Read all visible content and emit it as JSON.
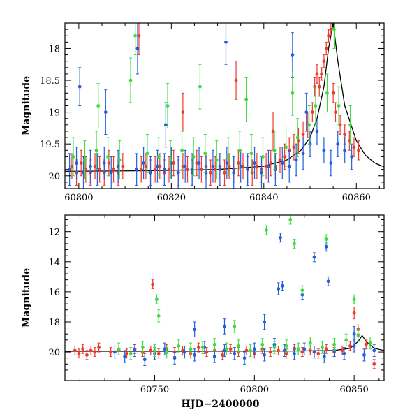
{
  "colors": {
    "green": "#3ddc3d",
    "blue": "#1f5fe0",
    "red": "#ee3b2b",
    "model": "#000000"
  },
  "chart_data": [
    {
      "type": "scatter",
      "panel": "top",
      "title": "",
      "xlabel": "",
      "ylabel": "Magnitude",
      "xlim": [
        60797,
        60866
      ],
      "ylim": [
        20.2,
        17.6
      ],
      "y_inverted": true,
      "xticks": [
        "60800",
        "60820",
        "60840",
        "60860"
      ],
      "yticks": [
        "18",
        "18.5",
        "19",
        "19.5",
        "20"
      ],
      "grid": false,
      "legend": "none",
      "series": [
        {
          "color": "red",
          "x": [
            60798.5,
            60799.5,
            60800.5,
            60801.5,
            60802.5,
            60803.5,
            60804.5,
            60805.5,
            60806.5,
            60807.5,
            60808.5,
            60809.5,
            60813.5,
            60814.5,
            60815.5,
            60816.5,
            60817.5,
            60818.5,
            60819.5,
            60820.5,
            60821.5,
            60822.5,
            60823.5,
            60824.5,
            60825.5,
            60826.5,
            60827.5,
            60828.5,
            60829.5,
            60830.5,
            60831.5,
            60832.5,
            60833.5,
            60834.5,
            60835.5,
            60836.5,
            60837.5,
            60838.5,
            60839.5,
            60840.5,
            60841.5,
            60842.5,
            60843.5,
            60844.5,
            60845.5,
            60846.5,
            60847.5,
            60848.5,
            60849.5,
            60850.5,
            60851.0,
            60851.5,
            60852.0,
            60852.5,
            60853.0,
            60853.5,
            60854.0,
            60854.5,
            60855.0,
            60855.5,
            60856.5,
            60857.5,
            60858.5,
            60859.5,
            60860.5,
            60813.0,
            60822.5,
            60834.0,
            60842.0
          ],
          "y": [
            19.85,
            19.95,
            19.8,
            19.9,
            19.95,
            19.85,
            19.9,
            19.95,
            19.8,
            19.9,
            19.95,
            19.85,
            19.9,
            19.85,
            19.95,
            19.9,
            19.85,
            19.95,
            19.9,
            19.8,
            19.95,
            19.85,
            19.9,
            19.95,
            19.8,
            19.9,
            19.85,
            19.95,
            19.9,
            19.85,
            19.95,
            19.85,
            19.9,
            19.8,
            19.85,
            19.9,
            19.95,
            19.85,
            19.9,
            19.85,
            19.8,
            19.85,
            19.75,
            19.7,
            19.6,
            19.55,
            19.45,
            19.35,
            19.2,
            19.0,
            18.6,
            18.4,
            18.6,
            18.4,
            18.2,
            18.0,
            17.8,
            17.7,
            18.7,
            19.0,
            19.2,
            19.35,
            19.45,
            19.55,
            19.6,
            17.8,
            19.0,
            18.5,
            19.3
          ],
          "err": [
            0.2,
            0.2,
            0.2,
            0.2,
            0.2,
            0.2,
            0.2,
            0.2,
            0.2,
            0.2,
            0.2,
            0.2,
            0.2,
            0.2,
            0.2,
            0.2,
            0.2,
            0.2,
            0.2,
            0.2,
            0.2,
            0.2,
            0.2,
            0.2,
            0.2,
            0.2,
            0.2,
            0.2,
            0.2,
            0.2,
            0.2,
            0.2,
            0.2,
            0.2,
            0.2,
            0.2,
            0.2,
            0.2,
            0.2,
            0.2,
            0.2,
            0.2,
            0.2,
            0.2,
            0.2,
            0.2,
            0.2,
            0.2,
            0.2,
            0.15,
            0.15,
            0.15,
            0.15,
            0.1,
            0.1,
            0.1,
            0.1,
            0.1,
            0.15,
            0.15,
            0.15,
            0.15,
            0.15,
            0.15,
            0.15,
            0.3,
            0.3,
            0.3,
            0.3
          ]
        },
        {
          "color": "blue",
          "x": [
            60798,
            60799.5,
            60801,
            60802.5,
            60804,
            60805.5,
            60807,
            60808.5,
            60812.5,
            60814,
            60815.5,
            60817,
            60818.5,
            60820,
            60821.5,
            60823,
            60824.5,
            60826,
            60827.5,
            60829,
            60830.5,
            60832,
            60833.5,
            60835,
            60836.5,
            60838,
            60839.5,
            60841,
            60842.5,
            60844,
            60845.5,
            60847,
            60848.5,
            60850,
            60851.5,
            60853,
            60854.5,
            60856,
            60857.5,
            60859,
            60800.2,
            60805.8,
            60812.7,
            60818.8,
            60831.8,
            60846.2,
            60849.2
          ],
          "y": [
            19.9,
            19.8,
            19.95,
            19.85,
            19.9,
            19.8,
            19.95,
            19.85,
            19.9,
            19.8,
            19.95,
            19.85,
            19.9,
            19.8,
            19.95,
            19.85,
            19.9,
            19.8,
            19.95,
            19.85,
            19.9,
            19.8,
            19.95,
            19.85,
            19.9,
            19.8,
            19.95,
            19.85,
            19.9,
            19.8,
            19.85,
            19.75,
            19.65,
            19.5,
            19.3,
            19.6,
            19.8,
            19.5,
            19.6,
            19.7,
            18.6,
            19.0,
            18.0,
            19.2,
            17.9,
            18.1,
            19.0
          ],
          "err": [
            0.25,
            0.25,
            0.25,
            0.25,
            0.25,
            0.25,
            0.25,
            0.25,
            0.25,
            0.25,
            0.25,
            0.25,
            0.25,
            0.25,
            0.25,
            0.25,
            0.25,
            0.25,
            0.25,
            0.25,
            0.25,
            0.25,
            0.25,
            0.25,
            0.25,
            0.25,
            0.25,
            0.25,
            0.25,
            0.25,
            0.25,
            0.25,
            0.25,
            0.2,
            0.2,
            0.2,
            0.2,
            0.2,
            0.2,
            0.2,
            0.3,
            0.35,
            0.4,
            0.35,
            0.35,
            0.35,
            0.3
          ]
        },
        {
          "color": "green",
          "x": [
            60798.8,
            60801.3,
            60803.8,
            60806.3,
            60808.8,
            60814.8,
            60817.3,
            60819.8,
            60822.3,
            60824.8,
            60827.3,
            60829.8,
            60832.3,
            60834.8,
            60837.3,
            60839.8,
            60842.3,
            60844.8,
            60847.3,
            60849.8,
            60851.2,
            60853.7,
            60856.2,
            60858.7,
            60804.2,
            60811.2,
            60819.2,
            60826.2,
            60836.2,
            60846.2,
            60855.2,
            60812.2
          ],
          "y": [
            19.7,
            19.75,
            19.6,
            19.7,
            19.75,
            19.65,
            19.7,
            19.75,
            19.6,
            19.7,
            19.65,
            19.75,
            19.7,
            19.6,
            19.65,
            19.7,
            19.6,
            19.55,
            19.4,
            19.2,
            18.9,
            18.7,
            18.9,
            19.2,
            18.9,
            18.5,
            18.9,
            18.6,
            18.8,
            18.7,
            17.7,
            17.8
          ],
          "err": [
            0.3,
            0.3,
            0.3,
            0.3,
            0.3,
            0.3,
            0.3,
            0.3,
            0.3,
            0.3,
            0.3,
            0.3,
            0.3,
            0.3,
            0.3,
            0.3,
            0.3,
            0.3,
            0.3,
            0.3,
            0.3,
            0.3,
            0.3,
            0.3,
            0.35,
            0.35,
            0.35,
            0.35,
            0.35,
            0.35,
            0.3,
            0.3
          ]
        }
      ],
      "model": {
        "x": [
          60797,
          60815,
          60830,
          60840,
          60845,
          60848,
          60850,
          60851.5,
          60853,
          60854,
          60855,
          60856,
          60857.5,
          60860,
          60862,
          60864,
          60866
        ],
        "y": [
          19.93,
          19.92,
          19.9,
          19.85,
          19.75,
          19.6,
          19.4,
          19.1,
          18.6,
          18.0,
          17.6,
          18.2,
          18.9,
          19.45,
          19.68,
          19.8,
          19.86
        ]
      }
    },
    {
      "type": "scatter",
      "panel": "bottom",
      "title": "",
      "xlabel": "HJD−2400000",
      "ylabel": "Magnitude",
      "xlim": [
        60705,
        60865
      ],
      "ylim": [
        21.9,
        10.9
      ],
      "y_inverted": true,
      "xticks": [
        "60750",
        "60800",
        "60850"
      ],
      "yticks": [
        "12",
        "14",
        "16",
        "18",
        "20"
      ],
      "grid": false,
      "legend": "none",
      "series": [
        {
          "color": "red",
          "x": [
            60710,
            60712,
            60714,
            60716,
            60718,
            60720,
            60722,
            60728,
            60732,
            60736,
            60740,
            60744,
            60748,
            60752,
            60756,
            60760,
            60764,
            60768,
            60772,
            60776,
            60780,
            60784,
            60788,
            60792,
            60796,
            60800,
            60804,
            60808,
            60812,
            60816,
            60820,
            60824,
            60828,
            60832,
            60836,
            60840,
            60844,
            60848,
            60852,
            60856,
            60860,
            60749,
            60850
          ],
          "y": [
            19.9,
            20.1,
            19.8,
            20.2,
            19.9,
            20.0,
            19.7,
            20.0,
            19.9,
            20.1,
            19.8,
            20.0,
            19.9,
            20.1,
            19.8,
            20.0,
            19.9,
            20.1,
            19.7,
            20.0,
            19.9,
            20.2,
            19.8,
            20.0,
            19.9,
            20.1,
            19.8,
            20.0,
            19.9,
            20.1,
            19.8,
            20.0,
            19.9,
            20.1,
            19.8,
            20.0,
            19.9,
            19.6,
            18.5,
            19.5,
            20.8,
            15.5,
            17.4
          ],
          "err": [
            0.3,
            0.3,
            0.3,
            0.3,
            0.3,
            0.3,
            0.3,
            0.3,
            0.3,
            0.3,
            0.3,
            0.3,
            0.3,
            0.3,
            0.3,
            0.3,
            0.3,
            0.3,
            0.3,
            0.3,
            0.3,
            0.3,
            0.3,
            0.3,
            0.3,
            0.3,
            0.3,
            0.3,
            0.3,
            0.3,
            0.3,
            0.3,
            0.3,
            0.3,
            0.3,
            0.3,
            0.3,
            0.3,
            0.3,
            0.3,
            0.3,
            0.3,
            0.4
          ]
        },
        {
          "color": "blue",
          "x": [
            60730,
            60735,
            60740,
            60745,
            60750,
            60755,
            60760,
            60765,
            60770,
            60775,
            60780,
            60785,
            60790,
            60795,
            60800,
            60805,
            60810,
            60815,
            60820,
            60825,
            60830,
            60835,
            60840,
            60845,
            60850,
            60855,
            60860,
            60813,
            60814,
            60824,
            60830,
            60836,
            60837,
            60812,
            60805,
            60785,
            60770,
            60850
          ],
          "y": [
            20.0,
            20.3,
            19.9,
            20.5,
            20.1,
            19.8,
            20.4,
            20.0,
            20.2,
            19.7,
            20.3,
            19.9,
            20.1,
            20.4,
            19.8,
            20.2,
            19.5,
            19.9,
            20.1,
            19.8,
            20.0,
            20.3,
            19.9,
            20.1,
            19.6,
            20.2,
            19.9,
            12.4,
            15.6,
            16.2,
            13.7,
            13.0,
            15.3,
            15.8,
            18.0,
            18.3,
            18.5,
            18.8
          ],
          "err": [
            0.4,
            0.4,
            0.4,
            0.4,
            0.4,
            0.4,
            0.4,
            0.4,
            0.4,
            0.4,
            0.4,
            0.4,
            0.4,
            0.4,
            0.4,
            0.4,
            0.4,
            0.4,
            0.4,
            0.4,
            0.4,
            0.4,
            0.4,
            0.4,
            0.4,
            0.4,
            0.4,
            0.3,
            0.3,
            0.3,
            0.3,
            0.3,
            0.3,
            0.4,
            0.5,
            0.5,
            0.5,
            0.5
          ]
        },
        {
          "color": "green",
          "x": [
            60732,
            60738,
            60744,
            60750,
            60756,
            60762,
            60768,
            60774,
            60780,
            60786,
            60792,
            60798,
            60804,
            60810,
            60816,
            60822,
            60828,
            60834,
            60840,
            60846,
            60852,
            60858,
            60806,
            60818,
            60820,
            60836,
            60751,
            60752,
            60824,
            60850,
            60790
          ],
          "y": [
            19.8,
            20.1,
            19.7,
            19.9,
            20.0,
            19.6,
            19.8,
            19.7,
            19.5,
            19.8,
            19.6,
            19.9,
            19.5,
            19.7,
            19.6,
            19.8,
            19.4,
            19.7,
            19.5,
            19.2,
            18.9,
            19.4,
            11.9,
            11.2,
            12.8,
            12.5,
            16.5,
            17.6,
            15.9,
            16.5,
            18.3
          ],
          "err": [
            0.4,
            0.4,
            0.4,
            0.4,
            0.4,
            0.4,
            0.4,
            0.4,
            0.4,
            0.4,
            0.4,
            0.4,
            0.4,
            0.4,
            0.4,
            0.4,
            0.4,
            0.4,
            0.4,
            0.4,
            0.4,
            0.4,
            0.3,
            0.3,
            0.3,
            0.3,
            0.3,
            0.4,
            0.3,
            0.3,
            0.4
          ]
        }
      ],
      "model": {
        "x": [
          60705,
          60760,
          60820,
          60840,
          60848,
          60852,
          60854,
          60856,
          60860,
          60865
        ],
        "y": [
          19.95,
          19.95,
          19.93,
          19.9,
          19.75,
          19.3,
          18.9,
          19.3,
          19.75,
          19.9
        ]
      }
    }
  ]
}
